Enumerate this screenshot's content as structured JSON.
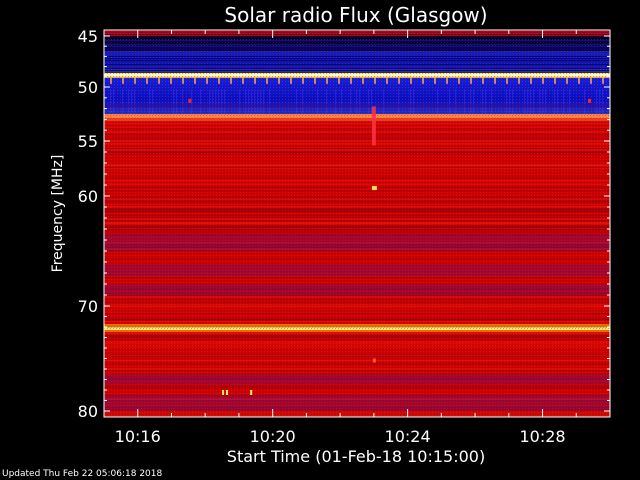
{
  "chart_data": {
    "type": "heatmap",
    "title": "Solar radio Flux (Glasgow)",
    "xlabel": "Start Time (01-Feb-18 10:15:00)",
    "ylabel": "Frequency [MHz]",
    "x_unit": "time",
    "xlim": [
      "10:15:00",
      "10:30:00"
    ],
    "ylim": [
      45,
      80
    ],
    "y_axis_inverted": true,
    "x_ticks": [
      "10:16",
      "10:20",
      "10:24",
      "10:28"
    ],
    "y_ticks": [
      45,
      50,
      55,
      60,
      70,
      80
    ],
    "colors": {
      "low": "#0000cc",
      "mid": "#cc0000",
      "high": "#ffff66"
    },
    "bands": [
      {
        "from_mhz": 45.0,
        "to_mhz": 46.5,
        "level": "very low"
      },
      {
        "from_mhz": 46.5,
        "to_mhz": 48.6,
        "level": "low"
      },
      {
        "from_mhz": 48.6,
        "to_mhz": 49.1,
        "level": "very high"
      },
      {
        "from_mhz": 49.1,
        "to_mhz": 52.5,
        "level": "low"
      },
      {
        "from_mhz": 52.5,
        "to_mhz": 52.9,
        "level": "high"
      },
      {
        "from_mhz": 52.9,
        "to_mhz": 71.9,
        "level": "medium"
      },
      {
        "from_mhz": 71.9,
        "to_mhz": 72.3,
        "level": "very high"
      },
      {
        "from_mhz": 72.3,
        "to_mhz": 80.0,
        "level": "medium"
      }
    ]
  },
  "footer": {
    "updated": "Updated Thu Feb 22 05:06:18 2018"
  }
}
